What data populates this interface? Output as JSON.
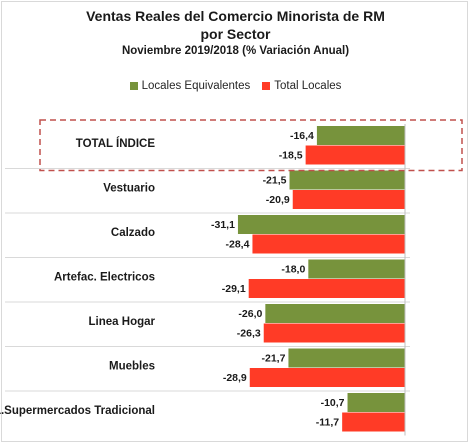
{
  "chart_data": {
    "type": "bar",
    "orientation": "horizontal",
    "title": "Ventas Reales del Comercio Minorista de RM",
    "title_line2": "por Sector",
    "subtitle": "Noviembre 2019/2018 (% Variación Anual)",
    "categories": [
      "TOTAL ÍNDICE",
      "Vestuario",
      "Calzado",
      "Artefac. Electricos",
      "Linea Hogar",
      "Muebles",
      "L.Supermercados Tradicional"
    ],
    "series": [
      {
        "name": "Locales Equivalentes",
        "color": "#77933c",
        "values": [
          -16.4,
          -21.5,
          -31.1,
          -18.0,
          -26.0,
          -21.7,
          -10.7
        ],
        "labels": [
          "-16,4",
          "-21,5",
          "-31,1",
          "-18,0",
          "-26,0",
          "-21,7",
          "-10,7"
        ]
      },
      {
        "name": "Total Locales",
        "color": "#ff3b26",
        "values": [
          -18.5,
          -20.9,
          -28.4,
          -29.1,
          -26.3,
          -28.9,
          -11.7
        ],
        "labels": [
          "-18,5",
          "-20,9",
          "-28,4",
          "-29,1",
          "-26,3",
          "-28,9",
          "-11,7"
        ]
      }
    ],
    "xlim": [
      -35,
      0
    ],
    "legend_position": "top",
    "highlight_category": "TOTAL ÍNDICE",
    "highlight_color": "#c0504d"
  }
}
